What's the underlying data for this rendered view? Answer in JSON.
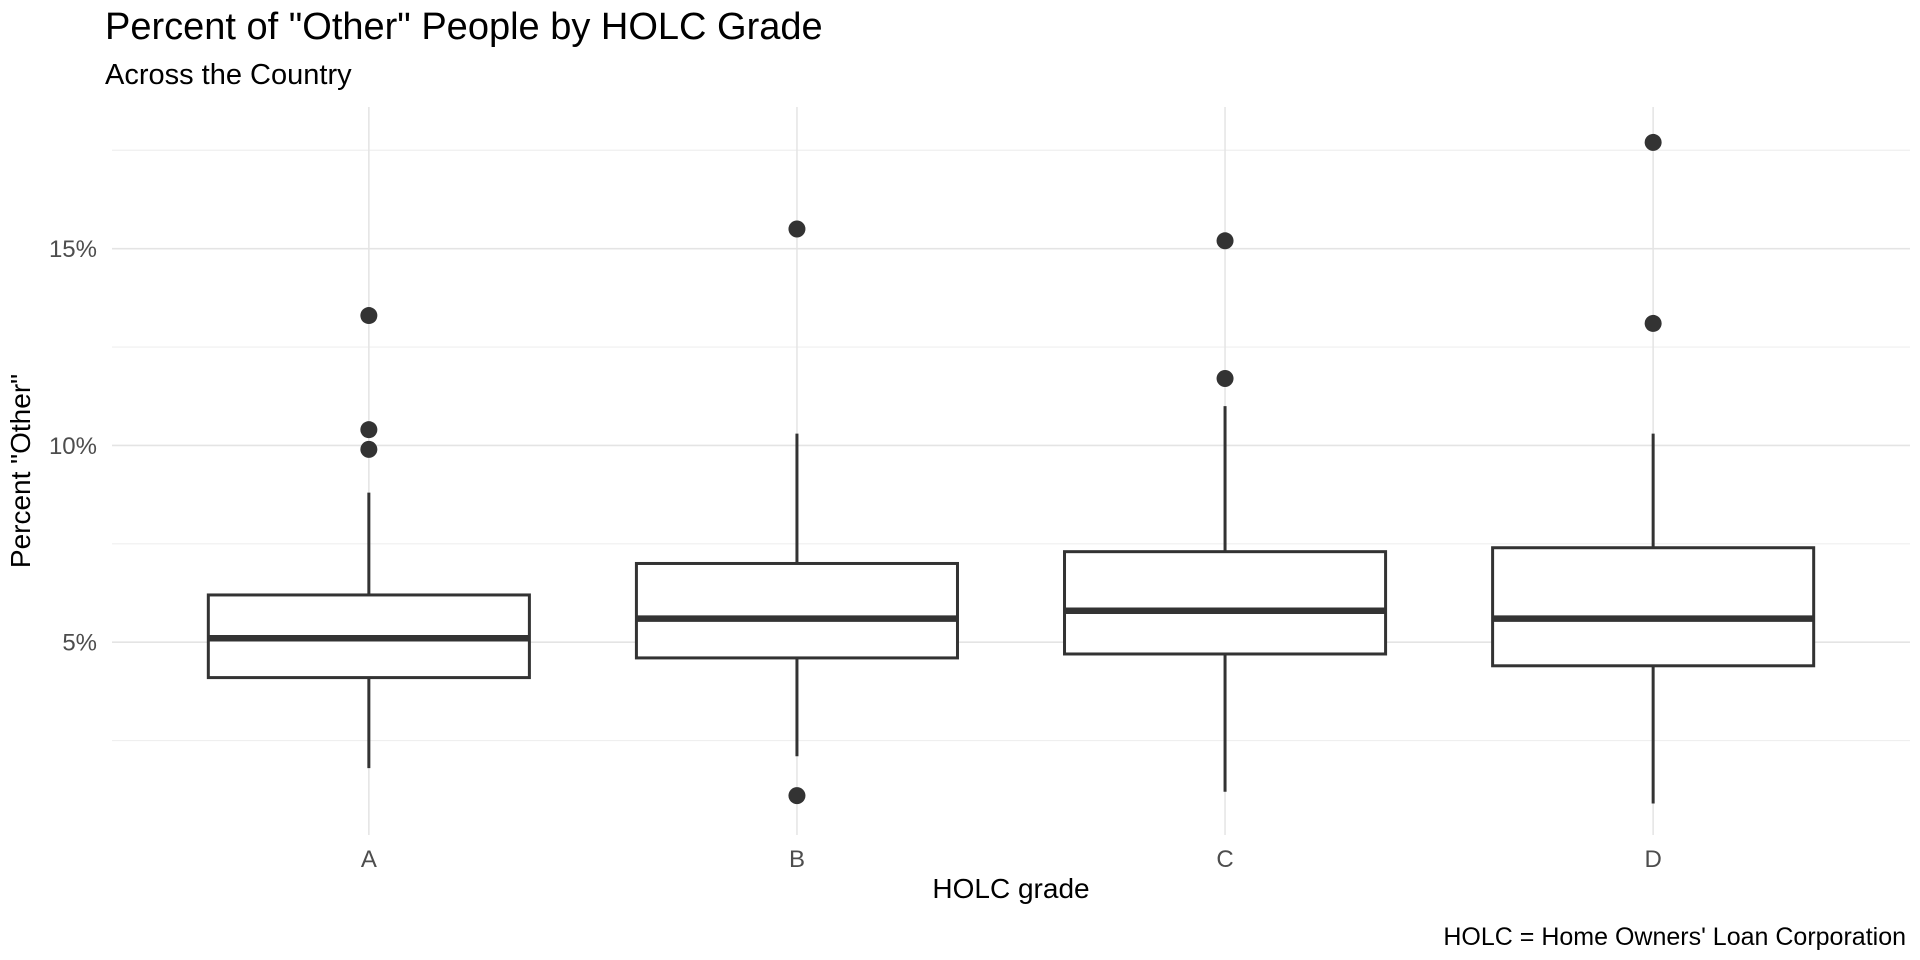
{
  "chart_data": {
    "type": "boxplot",
    "title": "Percent of \"Other\" People by HOLC Grade",
    "subtitle": "Across the Country",
    "xlabel": "HOLC grade",
    "ylabel": "Percent \"Other\"",
    "caption": "HOLC = Home Owners' Loan Corporation",
    "categories": [
      "A",
      "B",
      "C",
      "D"
    ],
    "y_ticks": [
      {
        "value": 5,
        "label": "5%"
      },
      {
        "value": 10,
        "label": "10%"
      },
      {
        "value": 15,
        "label": "15%"
      }
    ],
    "y_minor_ticks": [
      2.5,
      7.5,
      12.5,
      17.5
    ],
    "ylim": [
      0.1,
      18.6
    ],
    "grid": true,
    "legend": "none",
    "boxes": [
      {
        "category": "A",
        "whisker_low": 1.8,
        "q1": 4.1,
        "median": 5.1,
        "q3": 6.2,
        "whisker_high": 8.8,
        "outliers": [
          9.9,
          10.4,
          13.3
        ]
      },
      {
        "category": "B",
        "whisker_low": 2.1,
        "q1": 4.6,
        "median": 5.6,
        "q3": 7.0,
        "whisker_high": 10.3,
        "outliers": [
          1.1,
          15.5
        ]
      },
      {
        "category": "C",
        "whisker_low": 1.2,
        "q1": 4.7,
        "median": 5.8,
        "q3": 7.3,
        "whisker_high": 11.0,
        "outliers": [
          11.7,
          15.2
        ]
      },
      {
        "category": "D",
        "whisker_low": 0.9,
        "q1": 4.4,
        "median": 5.6,
        "q3": 7.4,
        "whisker_high": 10.3,
        "outliers": [
          13.1,
          17.7
        ]
      }
    ],
    "colors": {
      "stroke": "#333333",
      "box_fill": "#ffffff",
      "grid_major": "#e4e4e4",
      "grid_minor": "#efefef",
      "tick_label": "#4d4d4d",
      "text": "#000000",
      "background": "#ffffff"
    }
  }
}
